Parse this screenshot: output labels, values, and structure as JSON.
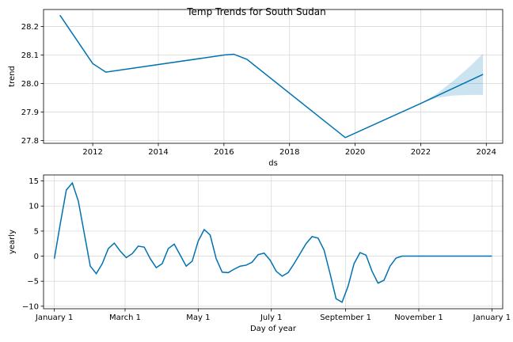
{
  "chart_data": [
    {
      "type": "line",
      "title": "Temp Trends for South Sudan",
      "xlabel": "ds",
      "ylabel": "trend",
      "xlim": [
        2010.5,
        2024.5
      ],
      "ylim": [
        27.79,
        28.26
      ],
      "xticks": [
        2012,
        2014,
        2016,
        2018,
        2020,
        2022,
        2024
      ],
      "xtick_labels": [
        "2012",
        "2014",
        "2016",
        "2018",
        "2020",
        "2022",
        "2024"
      ],
      "yticks": [
        27.8,
        27.9,
        28.0,
        28.1,
        28.2
      ],
      "ytick_labels": [
        "27.8",
        "27.9",
        "28.0",
        "28.1",
        "28.2"
      ],
      "grid": true,
      "line_color": "#0072B2",
      "band_color": "#0072B2",
      "series": [
        {
          "x": [
            2011.0,
            2012.0,
            2012.4,
            2016.0,
            2016.3,
            2016.7,
            2019.7,
            2022.0,
            2023.9
          ],
          "y": [
            28.24,
            28.07,
            28.04,
            28.1,
            28.103,
            28.085,
            27.81,
            27.93,
            28.032
          ]
        }
      ],
      "uncertainty": {
        "x": [
          2022.0,
          2022.5,
          2023.0,
          2023.5,
          2023.9
        ],
        "upper": [
          27.93,
          27.965,
          28.01,
          28.06,
          28.105
        ],
        "lower": [
          27.93,
          27.95,
          27.958,
          27.96,
          27.96
        ]
      }
    },
    {
      "type": "line",
      "title": "",
      "xlabel": "Day of year",
      "ylabel": "yearly",
      "xlim": [
        -9,
        374
      ],
      "ylim": [
        -10.5,
        16.2
      ],
      "xticks": [
        0,
        59,
        120,
        181,
        243,
        304,
        365
      ],
      "xtick_labels": [
        "January 1",
        "March 1",
        "May 1",
        "July 1",
        "September 1",
        "November 1",
        "January 1"
      ],
      "yticks": [
        -10,
        -5,
        0,
        5,
        10,
        15
      ],
      "ytick_labels": [
        "−10",
        "−5",
        "0",
        "5",
        "10",
        "15"
      ],
      "grid": true,
      "line_color": "#0072B2",
      "series": [
        {
          "x": [
            0,
            5,
            10,
            15,
            20,
            25,
            30,
            35,
            40,
            45,
            50,
            55,
            60,
            65,
            70,
            75,
            80,
            85,
            90,
            95,
            100,
            105,
            110,
            115,
            120,
            125,
            130,
            135,
            140,
            145,
            150,
            155,
            160,
            165,
            170,
            175,
            180,
            185,
            190,
            195,
            200,
            205,
            210,
            215,
            220,
            225,
            230,
            235,
            240,
            245,
            250,
            255,
            260,
            265,
            270,
            275,
            280,
            285,
            290,
            295,
            300,
            305,
            310,
            315,
            320,
            325,
            330,
            335,
            340,
            345,
            350,
            355,
            360,
            365
          ],
          "y": [
            -0.5,
            6.5,
            13.2,
            14.6,
            11.0,
            4.5,
            -2.0,
            -3.5,
            -1.5,
            1.5,
            2.6,
            1.0,
            -0.3,
            0.5,
            2.0,
            1.8,
            -0.5,
            -2.3,
            -1.5,
            1.5,
            2.4,
            0.2,
            -2.0,
            -1.0,
            3.0,
            5.3,
            4.2,
            -0.5,
            -3.2,
            -3.3,
            -2.6,
            -2.0,
            -1.8,
            -1.2,
            0.3,
            0.6,
            -0.8,
            -3.0,
            -4.0,
            -3.3,
            -1.5,
            0.5,
            2.5,
            3.9,
            3.6,
            1.2,
            -3.5,
            -8.5,
            -9.2,
            -6.0,
            -1.5,
            0.7,
            0.2,
            -3.0,
            -5.4,
            -4.8,
            -2.0,
            -0.4,
            0,
            0,
            0,
            0,
            0,
            0,
            0,
            0,
            0,
            0,
            0,
            0,
            0,
            0,
            0,
            0
          ]
        }
      ]
    }
  ]
}
